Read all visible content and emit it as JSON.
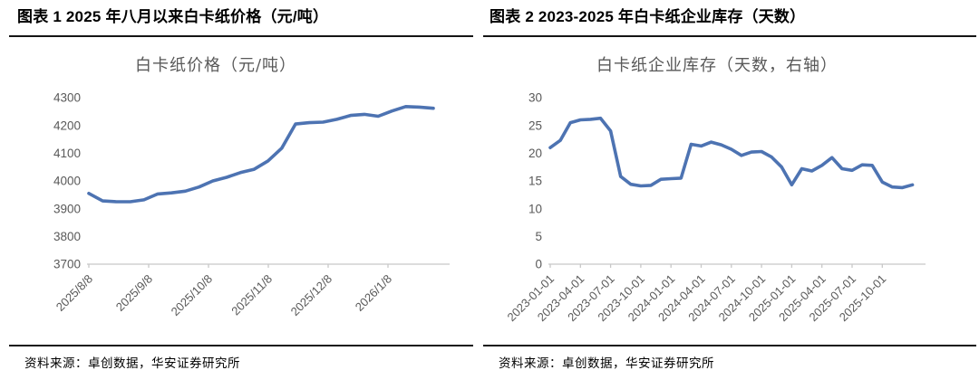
{
  "colors": {
    "line": "#4d73b2",
    "axis": "#c8c8c8",
    "axis_label": "#595959",
    "chart_title": "#595959",
    "header_text": "#000000",
    "rule": "#141414"
  },
  "figure1": {
    "header": "图表 1 2025 年八月以来白卡纸价格（元/吨）",
    "source": "资料来源：卓创数据，华安证券研究所"
  },
  "figure2": {
    "header": "图表 2 2023-2025 年白卡纸企业库存（天数）",
    "source": "资料来源：卓创数据，华安证券研究所"
  },
  "chart_data": [
    {
      "type": "line",
      "title": "白卡纸价格（元/吨）",
      "xlabel": "",
      "ylabel": "",
      "grid": false,
      "legend": "none",
      "x_label_rotation": -45,
      "ylim": [
        3700,
        4300
      ],
      "y_ticks": [
        3700,
        3800,
        3900,
        4000,
        4100,
        4200,
        4300
      ],
      "x_tick_labels": [
        "2025/8/8",
        "2025/9/8",
        "2025/10/8",
        "2025/11/8",
        "2025/12/8",
        "2026/1/8"
      ],
      "x": [
        "2025/8/8",
        "2025/8/15",
        "2025/8/22",
        "2025/8/29",
        "2025/9/5",
        "2025/9/12",
        "2025/9/19",
        "2025/9/26",
        "2025/10/3",
        "2025/10/10",
        "2025/10/17",
        "2025/10/24",
        "2025/10/31",
        "2025/11/7",
        "2025/11/14",
        "2025/11/21",
        "2025/11/28",
        "2025/12/5",
        "2025/12/12",
        "2025/12/19",
        "2025/12/26",
        "2026/1/2",
        "2026/1/9",
        "2026/1/16",
        "2026/1/23",
        "2026/1/30"
      ],
      "values": [
        3955,
        3928,
        3925,
        3925,
        3932,
        3953,
        3957,
        3963,
        3978,
        4000,
        4013,
        4030,
        4042,
        4072,
        4118,
        4205,
        4210,
        4212,
        4222,
        4236,
        4240,
        4233,
        4252,
        4268,
        4266,
        4262
      ],
      "line_color": "#4d73b2"
    },
    {
      "type": "line",
      "title": "白卡纸企业库存（天数，右轴）",
      "xlabel": "",
      "ylabel": "",
      "grid": false,
      "legend": "none",
      "x_label_rotation": -45,
      "ylim": [
        0,
        30
      ],
      "y_ticks": [
        0,
        5,
        10,
        15,
        20,
        25,
        30
      ],
      "x_tick_labels": [
        "2023-01-01",
        "2023-04-01",
        "2023-07-01",
        "2023-10-01",
        "2024-01-01",
        "2024-04-01",
        "2024-07-01",
        "2024-10-01",
        "2025-01-01",
        "2025-04-01",
        "2025-07-01",
        "2025-10-01"
      ],
      "x": [
        "2023-01",
        "2023-02",
        "2023-03",
        "2023-04",
        "2023-05",
        "2023-06",
        "2023-07",
        "2023-08",
        "2023-09",
        "2023-10",
        "2023-11",
        "2023-12",
        "2024-01",
        "2024-02",
        "2024-03",
        "2024-04",
        "2024-05",
        "2024-06",
        "2024-07",
        "2024-08",
        "2024-09",
        "2024-10",
        "2024-11",
        "2024-12",
        "2025-01",
        "2025-02",
        "2025-03",
        "2025-04",
        "2025-05",
        "2025-06",
        "2025-07",
        "2025-08",
        "2025-09",
        "2025-10",
        "2025-11",
        "2025-12",
        "2026-01"
      ],
      "values": [
        21.0,
        22.3,
        25.5,
        26.0,
        26.1,
        26.3,
        24.0,
        15.8,
        14.4,
        14.1,
        14.2,
        15.3,
        15.4,
        15.5,
        21.6,
        21.3,
        22.0,
        21.5,
        20.7,
        19.6,
        20.2,
        20.3,
        19.3,
        17.5,
        14.3,
        17.2,
        16.8,
        17.8,
        19.2,
        17.2,
        16.9,
        17.9,
        17.8,
        14.8,
        13.9,
        13.8,
        14.3
      ],
      "line_color": "#4d73b2"
    }
  ]
}
